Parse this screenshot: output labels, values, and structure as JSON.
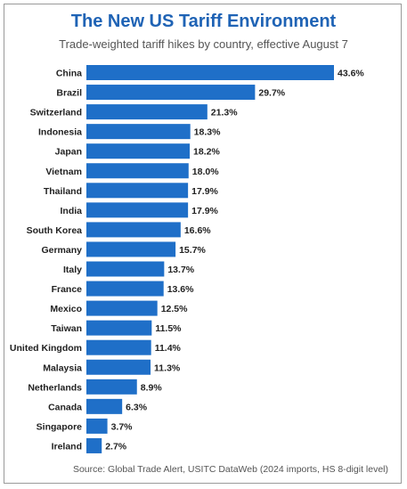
{
  "chart_data": {
    "type": "bar",
    "orientation": "horizontal",
    "title": "The New US Tariff Environment",
    "subtitle": "Trade-weighted tariff hikes by country, effective August 7",
    "categories": [
      "China",
      "Brazil",
      "Switzerland",
      "Indonesia",
      "Japan",
      "Vietnam",
      "Thailand",
      "India",
      "South Korea",
      "Germany",
      "Italy",
      "France",
      "Mexico",
      "Taiwan",
      "United Kingdom",
      "Malaysia",
      "Netherlands",
      "Canada",
      "Singapore",
      "Ireland"
    ],
    "values": [
      43.6,
      29.7,
      21.3,
      18.3,
      18.2,
      18.0,
      17.9,
      17.9,
      16.6,
      15.7,
      13.7,
      13.6,
      12.5,
      11.5,
      11.4,
      11.3,
      8.9,
      6.3,
      3.7,
      2.7
    ],
    "value_labels": [
      "43.6%",
      "29.7%",
      "21.3%",
      "18.3%",
      "18.2%",
      "18.0%",
      "17.9%",
      "17.9%",
      "16.6%",
      "15.7%",
      "13.7%",
      "13.6%",
      "12.5%",
      "11.5%",
      "11.4%",
      "11.3%",
      "8.9%",
      "6.3%",
      "3.7%",
      "2.7%"
    ],
    "xlim": [
      0,
      43.6
    ],
    "grid": false,
    "legend": "none",
    "bar_color": "#1f6fc8",
    "source": "Source: Global Trade Alert, USITC DataWeb (2024 imports, HS 8-digit level)"
  },
  "colors": {
    "title": "#1f63b5",
    "bar": "#1f6fc8",
    "text": "#222222"
  }
}
